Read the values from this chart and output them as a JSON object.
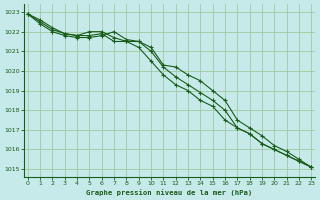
{
  "bg_color": "#c6eaea",
  "grid_color": "#a0c8a0",
  "line_color": "#1a5c1a",
  "marker_color": "#1a5c1a",
  "xlabel": "Graphe pression niveau de la mer (hPa)",
  "xlabel_color": "#1a5c1a",
  "tick_color": "#1a5c1a",
  "ylim": [
    1014.6,
    1023.4
  ],
  "xlim": [
    -0.3,
    23.3
  ],
  "yticks": [
    1015,
    1016,
    1017,
    1018,
    1019,
    1020,
    1021,
    1022,
    1023
  ],
  "xticks": [
    0,
    1,
    2,
    3,
    4,
    5,
    6,
    7,
    8,
    9,
    10,
    11,
    12,
    13,
    14,
    15,
    16,
    17,
    18,
    19,
    20,
    21,
    22,
    23
  ],
  "series1_x": [
    0,
    1,
    2,
    3,
    4,
    5,
    6,
    7,
    8,
    9,
    10,
    11,
    12,
    13,
    14,
    15,
    16,
    17,
    18,
    19,
    20,
    21,
    22,
    23
  ],
  "series1_y": [
    1022.9,
    1022.6,
    1022.2,
    1021.9,
    1021.8,
    1022.0,
    1022.0,
    1021.7,
    1021.5,
    1021.2,
    1020.5,
    1019.8,
    1019.3,
    1019.0,
    1018.5,
    1018.2,
    1017.5,
    1017.1,
    1016.8,
    1016.3,
    1016.0,
    1015.7,
    1015.4,
    1015.1
  ],
  "series2_x": [
    0,
    1,
    2,
    3,
    4,
    5,
    6,
    7,
    8,
    9,
    10,
    11,
    12,
    13,
    14,
    15,
    16,
    17,
    18,
    19,
    20,
    21,
    22,
    23
  ],
  "series2_y": [
    1022.9,
    1022.5,
    1022.1,
    1021.9,
    1021.8,
    1021.8,
    1021.9,
    1021.5,
    1021.5,
    1021.5,
    1021.2,
    1020.3,
    1020.2,
    1019.8,
    1019.5,
    1019.0,
    1018.5,
    1017.5,
    1017.1,
    1016.7,
    1016.2,
    1015.9,
    1015.5,
    1015.1
  ],
  "series3_x": [
    0,
    1,
    2,
    3,
    4,
    5,
    6,
    7,
    8,
    9,
    10,
    11,
    12,
    13,
    14,
    15,
    16,
    17,
    18,
    19,
    20,
    21,
    22,
    23
  ],
  "series3_y": [
    1022.9,
    1022.4,
    1022.0,
    1021.8,
    1021.7,
    1021.7,
    1021.8,
    1022.0,
    1021.6,
    1021.5,
    1021.0,
    1020.2,
    1019.7,
    1019.3,
    1018.9,
    1018.5,
    1018.0,
    1017.1,
    1016.8,
    1016.3,
    1016.0,
    1015.7,
    1015.4,
    1015.1
  ]
}
